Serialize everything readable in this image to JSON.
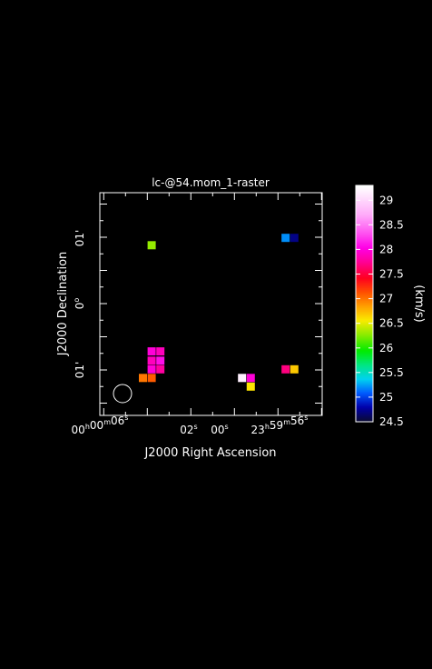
{
  "chart_data": {
    "type": "heatmap",
    "title": "lc-@54.mom_1-raster",
    "xlabel": "J2000 Right Ascension",
    "ylabel": "J2000 Declination",
    "x_ticks": [
      {
        "pre": "00",
        "h": "h",
        "m_val": "00",
        "m": "m",
        "s_val": "06",
        "s": "s"
      },
      {
        "pre": "",
        "h": "",
        "m_val": "",
        "m": "",
        "s_val": "02",
        "s": "s"
      },
      {
        "pre": "",
        "h": "",
        "m_val": "",
        "m": "",
        "s_val": "00",
        "s": "s"
      },
      {
        "pre": "23",
        "h": "h",
        "m_val": "59",
        "m": "m",
        "s_val": "56",
        "s": "s"
      }
    ],
    "y_ticks": [
      {
        "val": "01",
        "unit": "'"
      },
      {
        "val": "0",
        "unit": "o"
      },
      {
        "val": "01",
        "unit": "'"
      }
    ],
    "colorbar": {
      "label": "(km/s)",
      "min": 24.5,
      "max": 29.3,
      "ticks": [
        "24.5",
        "25",
        "25.5",
        "26",
        "26.5",
        "27",
        "27.5",
        "28",
        "28.5",
        "29"
      ]
    },
    "grid": false,
    "beam": "circle at lower-left",
    "pixels": [
      {
        "ra_s": 3.8,
        "dec_arcmin": 0.88,
        "value": 26.3
      },
      {
        "ra_s": -2.35,
        "dec_arcmin": 0.99,
        "value": 25.2
      },
      {
        "ra_s": -2.75,
        "dec_arcmin": 0.99,
        "value": 24.7
      },
      {
        "ra_s": 3.8,
        "dec_arcmin": -0.72,
        "value": 28.0
      },
      {
        "ra_s": 3.4,
        "dec_arcmin": -0.72,
        "value": 27.9
      },
      {
        "ra_s": 3.8,
        "dec_arcmin": -0.86,
        "value": 27.9
      },
      {
        "ra_s": 3.4,
        "dec_arcmin": -0.86,
        "value": 28.1
      },
      {
        "ra_s": 3.8,
        "dec_arcmin": -0.99,
        "value": 28.0
      },
      {
        "ra_s": 3.4,
        "dec_arcmin": -0.99,
        "value": 27.8
      },
      {
        "ra_s": 4.2,
        "dec_arcmin": -1.12,
        "value": 27.0
      },
      {
        "ra_s": 3.8,
        "dec_arcmin": -1.12,
        "value": 27.1
      },
      {
        "ra_s": -0.35,
        "dec_arcmin": -1.12,
        "value": 29.2
      },
      {
        "ra_s": -0.75,
        "dec_arcmin": -1.12,
        "value": 28.0
      },
      {
        "ra_s": -0.75,
        "dec_arcmin": -1.25,
        "value": 26.6
      },
      {
        "ra_s": -2.35,
        "dec_arcmin": -0.99,
        "value": 27.7
      },
      {
        "ra_s": -2.75,
        "dec_arcmin": -0.99,
        "value": 26.7
      }
    ]
  }
}
